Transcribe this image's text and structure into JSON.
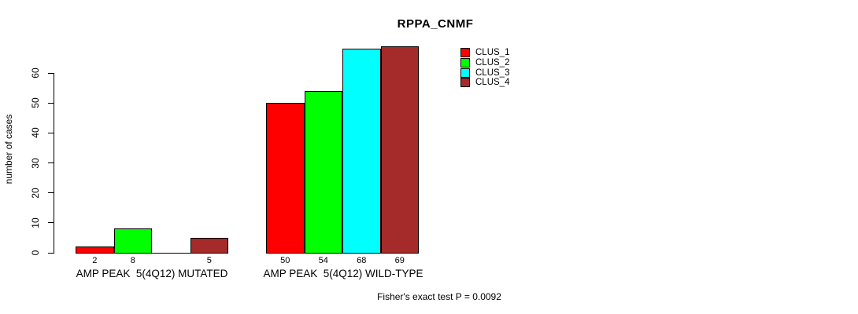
{
  "chart_data": {
    "type": "bar",
    "title": "RPPA_CNMF",
    "ylabel": "number of cases",
    "xlabel": "",
    "yticks": [
      0,
      10,
      20,
      30,
      40,
      50,
      60
    ],
    "ylim": [
      0,
      69
    ],
    "grid": false,
    "legend_position": "top-right",
    "categories": [
      "AMP PEAK  5(4Q12) MUTATED",
      "AMP PEAK  5(4Q12) WILD-TYPE"
    ],
    "series": [
      {
        "name": "CLUS_1",
        "color": "#FF0000",
        "values": [
          2,
          50
        ]
      },
      {
        "name": "CLUS_2",
        "color": "#00FF00",
        "values": [
          8,
          54
        ]
      },
      {
        "name": "CLUS_3",
        "color": "#00FFFF",
        "values": [
          0,
          68
        ]
      },
      {
        "name": "CLUS_4",
        "color": "#A52A2A",
        "values": [
          5,
          69
        ]
      }
    ],
    "bar_labels": [
      [
        "2",
        "8",
        "",
        "5"
      ],
      [
        "50",
        "54",
        "68",
        "69"
      ]
    ],
    "annotation": "Fisher's exact test P = 0.0092"
  }
}
